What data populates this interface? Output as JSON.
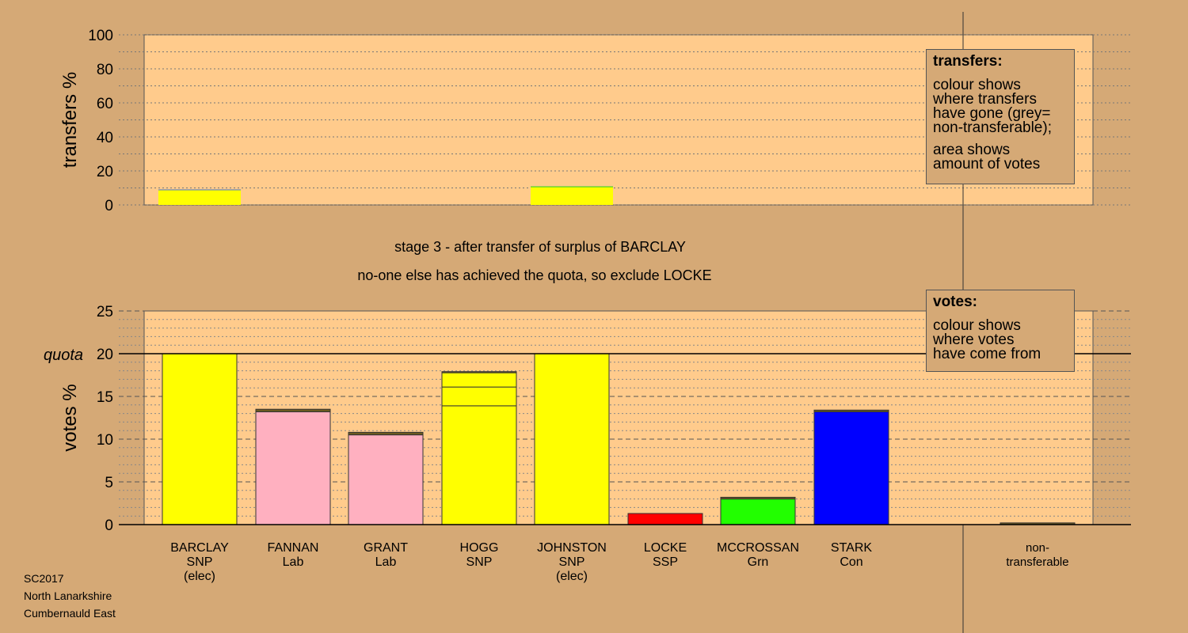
{
  "chart_data": [
    {
      "type": "bar",
      "ylabel": "transfers %",
      "ylim": [
        0,
        100
      ],
      "yticks": [
        0,
        20,
        40,
        60,
        80,
        100
      ],
      "categories": [
        "BARCLAY",
        "FANNAN",
        "GRANT",
        "HOGG",
        "JOHNSTON",
        "LOCKE",
        "MCCROSSAN",
        "STARK"
      ],
      "bars": [
        {
          "category": "BARCLAY",
          "segments": [
            {
              "value": 8.8,
              "color": "#ffff00"
            },
            {
              "value": 0.3,
              "color": "#4a78c8"
            }
          ]
        },
        {
          "category": "JOHNSTON",
          "segments": [
            {
              "value": 10.6,
              "color": "#ffff00"
            },
            {
              "value": 0.3,
              "color": "#22cc22"
            }
          ]
        }
      ]
    },
    {
      "type": "bar",
      "ylabel": "votes %",
      "ylim": [
        0,
        25
      ],
      "yticks": [
        0,
        5,
        10,
        15,
        20,
        25
      ],
      "quota": 20,
      "quota_label": "quota",
      "categories": [
        {
          "name": "BARCLAY",
          "party": "SNP",
          "note": "(elec)"
        },
        {
          "name": "FANNAN",
          "party": "Lab",
          "note": ""
        },
        {
          "name": "GRANT",
          "party": "Lab",
          "note": ""
        },
        {
          "name": "HOGG",
          "party": "SNP",
          "note": ""
        },
        {
          "name": "JOHNSTON",
          "party": "SNP",
          "note": "(elec)"
        },
        {
          "name": "LOCKE",
          "party": "SSP",
          "note": ""
        },
        {
          "name": "MCCROSSAN",
          "party": "Grn",
          "note": ""
        },
        {
          "name": "STARK",
          "party": "Con",
          "note": ""
        },
        {
          "name": "",
          "party": "",
          "note": ""
        },
        {
          "name": "non-",
          "party": "transferable",
          "note": ""
        }
      ],
      "bars": [
        {
          "segments": [
            {
              "value": 20.0,
              "color": "#ffff00"
            }
          ]
        },
        {
          "segments": [
            {
              "value": 13.2,
              "color": "#ffb0c0"
            },
            {
              "value": 0.3,
              "color": "#6b5a20"
            }
          ]
        },
        {
          "segments": [
            {
              "value": 10.5,
              "color": "#ffb0c0"
            },
            {
              "value": 0.3,
              "color": "#6b5a20"
            }
          ]
        },
        {
          "segments": [
            {
              "value": 13.9,
              "color": "#ffff00"
            },
            {
              "value": 2.2,
              "color": "#ffff00"
            },
            {
              "value": 1.7,
              "color": "#ffff00"
            },
            {
              "value": 0.1,
              "color": "#6b5a20"
            }
          ]
        },
        {
          "segments": [
            {
              "value": 20.0,
              "color": "#ffff00"
            }
          ]
        },
        {
          "segments": [
            {
              "value": 1.3,
              "color": "#ff0000"
            }
          ]
        },
        {
          "segments": [
            {
              "value": 3.0,
              "color": "#22ff00"
            },
            {
              "value": 0.2,
              "color": "#6b5a20"
            }
          ]
        },
        {
          "segments": [
            {
              "value": 13.2,
              "color": "#0000ff"
            },
            {
              "value": 0.2,
              "color": "#6b5a20"
            }
          ]
        },
        {
          "segments": [
            {
              "value": 0.0,
              "color": "#999999"
            }
          ]
        },
        {
          "segments": [
            {
              "value": 0.2,
              "color": "#6b5a20"
            }
          ]
        }
      ]
    }
  ],
  "stage_text": "stage 3 - after transfer of surplus of BARCLAY",
  "action_text": "no-one else has achieved the quota, so exclude LOCKE",
  "legend_transfers": {
    "title": "transfers:",
    "lines1": [
      "colour shows",
      "where transfers",
      "have gone (grey=",
      "non-transferable);"
    ],
    "lines2": [
      "area shows",
      "amount of votes"
    ]
  },
  "legend_votes": {
    "title": "votes:",
    "lines": [
      "colour shows",
      "where votes",
      "have come from"
    ]
  },
  "footer": [
    "SC2017",
    "North Lanarkshire",
    "Cumbernauld East"
  ],
  "colors": {
    "background": "#d5a976",
    "plot": "#ffcb8c"
  }
}
